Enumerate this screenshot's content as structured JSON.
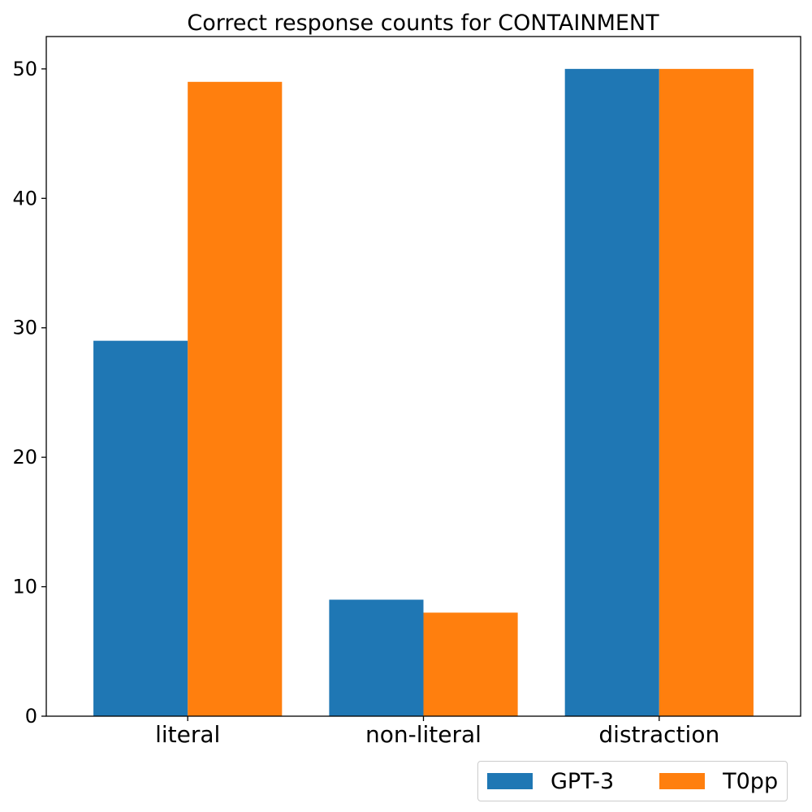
{
  "chart_data": {
    "type": "bar",
    "title": "Correct response counts for CONTAINMENT",
    "xlabel": "",
    "ylabel": "",
    "categories": [
      "literal",
      "non-literal",
      "distraction"
    ],
    "series": [
      {
        "name": "GPT-3",
        "values": [
          29,
          9,
          50
        ],
        "color": "#1f77b4"
      },
      {
        "name": "T0pp",
        "values": [
          49,
          8,
          50
        ],
        "color": "#ff7f0e"
      }
    ],
    "ylim": [
      0,
      52.5
    ],
    "yticks": [
      0,
      10,
      20,
      30,
      40,
      50
    ],
    "grid": false,
    "legend_position": "below-right"
  }
}
